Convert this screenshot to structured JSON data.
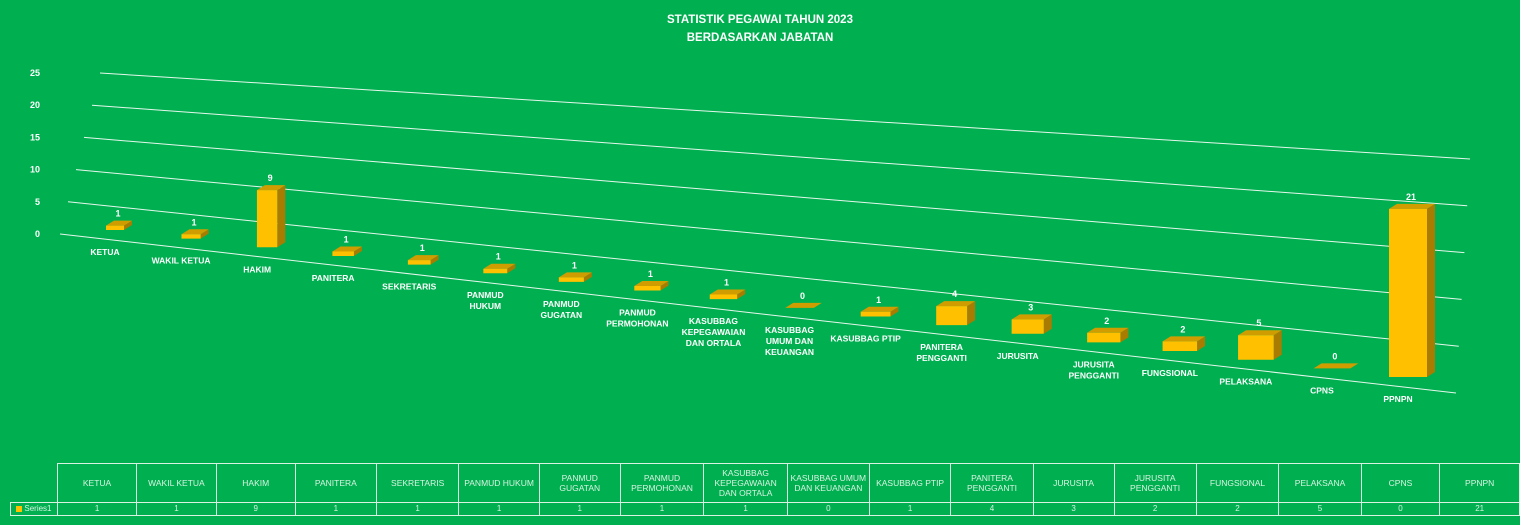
{
  "chart_data": {
    "type": "bar",
    "title": "STATISTIK PEGAWAI TAHUN 2023",
    "subtitle": "BERDASARKAN JABATAN",
    "categories": [
      "KETUA",
      "WAKIL KETUA",
      "HAKIM",
      "PANITERA",
      "SEKRETARIS",
      "PANMUD HUKUM",
      "PANMUD GUGATAN",
      "PANMUD PERMOHONAN",
      "KASUBBAG KEPEGAWAIAN DAN ORTALA",
      "KASUBBAG UMUM DAN KEUANGAN",
      "KASUBBAG PTIP",
      "PANITERA PENGGANTI",
      "JURUSITA",
      "JURUSITA PENGGANTI",
      "FUNGSIONAL",
      "PELAKSANA",
      "CPNS",
      "PPNPN"
    ],
    "category_axis_labels": [
      "KETUA",
      "WAKIL KETUA",
      "HAKIM",
      "PANITERA",
      "SEKRETARIS",
      "PANMUD|HUKUM",
      "PANMUD|GUGATAN",
      "PANMUD|PERMOHONAN",
      "KASUBBAG|KEPEGAWAIAN|DAN ORTALA",
      "KASUBBAG|UMUM DAN|KEUANGAN",
      "KASUBBAG PTIP",
      "PANITERA|PENGGANTI",
      "JURUSITA",
      "JURUSITA|PENGGANTI",
      "FUNGSIONAL",
      "PELAKSANA",
      "CPNS",
      "PPNPN"
    ],
    "series": [
      {
        "name": "Series1",
        "values": [
          1,
          1,
          9,
          1,
          1,
          1,
          1,
          1,
          1,
          0,
          1,
          4,
          3,
          2,
          2,
          5,
          0,
          21
        ]
      }
    ],
    "y_ticks": [
      "0",
      "5",
      "10",
      "15",
      "20",
      "25"
    ],
    "ylim": [
      0,
      25
    ],
    "grid": true,
    "bar_style": "3d",
    "data_table": true
  },
  "colors": {
    "background": "#00b050",
    "bar_front": "#ffc000",
    "bar_top": "#d09d00",
    "bar_side": "#a87c00",
    "grid": "#e5f7ec"
  }
}
